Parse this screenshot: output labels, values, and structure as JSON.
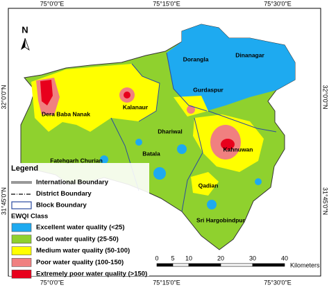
{
  "coords": {
    "top": [
      "75°0'0\"E",
      "75°15'0\"E",
      "75°30'0\"E"
    ],
    "bottom": [
      "75°0'0\"E",
      "75°15'0\"E",
      "75°30'0\"E"
    ],
    "left": [
      "32°0'0\"N",
      "31°45'0\"N"
    ],
    "right": [
      "32°0'0\"N",
      "31°45'0\"N"
    ]
  },
  "north": "N",
  "places": [
    "Dinanagar",
    "Dorangla",
    "Gurdaspur",
    "Kalanaur",
    "Dera Baba Nanak",
    "Dhariwal",
    "Kahnuwan",
    "Fatehgarh Churian",
    "Batala",
    "Qadian",
    "Sri Hargobindpur"
  ],
  "legend": {
    "title": "Legend",
    "boundaries": [
      "International Boundary",
      "District Boundary",
      "Block Boundary"
    ],
    "class_title": "EWQI Class",
    "classes": [
      {
        "label": "Excellent water quality (<25)",
        "color": "#1eaaf0"
      },
      {
        "label": "Good water quality (25-50)",
        "color": "#8fd12e"
      },
      {
        "label": "Medium water quality (50-100)",
        "color": "#ffff00"
      },
      {
        "label": "Poor water quality (100-150)",
        "color": "#f08080"
      },
      {
        "label": "Extremely poor water quality (>150)",
        "color": "#e8001c"
      }
    ]
  },
  "scale": {
    "ticks": [
      0,
      5,
      10,
      20,
      30,
      40
    ],
    "unit": "Kilometers"
  }
}
